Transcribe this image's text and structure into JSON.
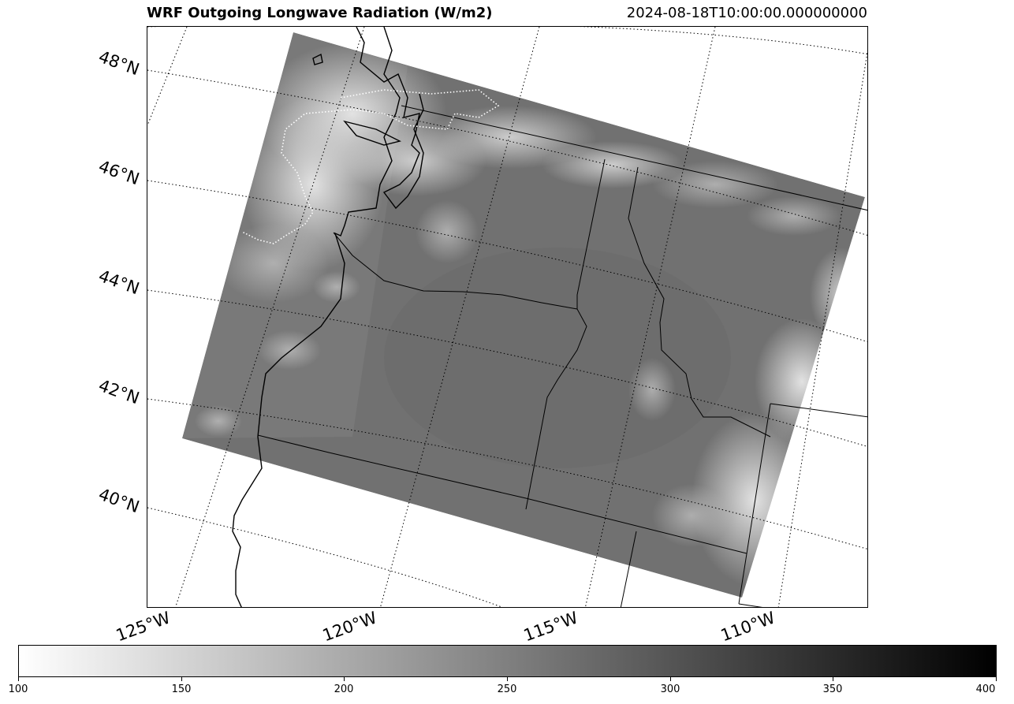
{
  "header": {
    "title": "WRF Outgoing Longwave Radiation (W/m2)",
    "timestamp": "2024-08-18T10:00:00.000000000"
  },
  "map": {
    "latitude_labels": [
      "48°N",
      "46°N",
      "44°N",
      "42°N",
      "40°N"
    ],
    "longitude_labels": [
      "125°W",
      "120°W",
      "115°W",
      "110°W"
    ],
    "colormap": "grayscale, light = low, dark = high"
  },
  "colorbar": {
    "min": 100,
    "max": 400,
    "tick_labels": [
      "100",
      "150",
      "200",
      "250",
      "300",
      "350",
      "400"
    ],
    "low_color": "#ffffff",
    "high_color": "#000000"
  }
}
